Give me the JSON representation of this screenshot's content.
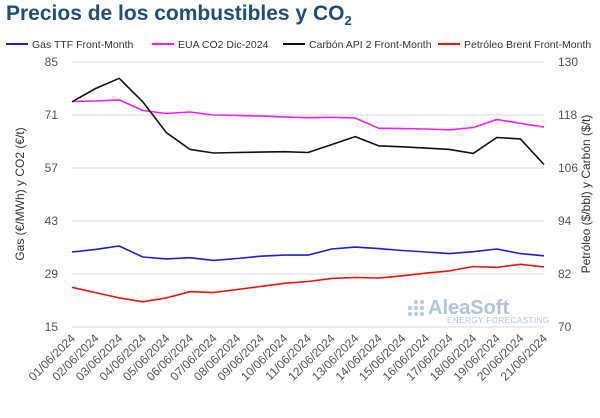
{
  "title": {
    "main": "Precios de los combustibles y CO",
    "sub": "2"
  },
  "watermark": {
    "brand": "AleaSoft",
    "tagline": "ENERGY FORECASTING"
  },
  "chart_data": {
    "type": "line",
    "title": "Precios de los combustibles y CO2",
    "x": [
      "01/06/2024",
      "02/06/2024",
      "03/06/2024",
      "04/06/2024",
      "05/06/2024",
      "06/06/2024",
      "07/06/2024",
      "08/06/2024",
      "09/06/2024",
      "10/06/2024",
      "11/06/2024",
      "12/06/2024",
      "13/06/2024",
      "14/06/2024",
      "15/06/2024",
      "16/06/2024",
      "17/06/2024",
      "18/06/2024",
      "19/06/2024",
      "20/06/2024",
      "21/06/2024"
    ],
    "ylabel_left": "Gas (€/MWh) y CO2 (€/t)",
    "ylabel_right": "Petróleo ($/bbl) y Carbón ($/t)",
    "ylim_left": [
      15,
      85
    ],
    "ylim_right": [
      70,
      130
    ],
    "yticks_left": [
      15,
      29,
      43,
      57,
      71,
      85
    ],
    "yticks_right": [
      70,
      82,
      94,
      106,
      118,
      130
    ],
    "grid": "horizontal",
    "legend": "top",
    "series": [
      {
        "name": "Gas TTF Front-Month",
        "axis": "left",
        "color": "#1f1fd1",
        "values": [
          34.8,
          35.5,
          36.4,
          33.5,
          33.0,
          33.3,
          32.6,
          33.1,
          33.7,
          34.0,
          34.0,
          35.6,
          36.1,
          35.7,
          35.2,
          34.8,
          34.4,
          34.9,
          35.6,
          34.4,
          33.8
        ]
      },
      {
        "name": "EUA CO2 Dic-2024",
        "axis": "left",
        "color": "#ee22ee",
        "values": [
          74.6,
          74.7,
          75.0,
          72.2,
          71.4,
          71.8,
          71.0,
          70.9,
          70.7,
          70.5,
          70.3,
          70.4,
          70.2,
          67.5,
          67.4,
          67.3,
          67.1,
          67.7,
          69.8,
          68.8,
          67.8
        ]
      },
      {
        "name": "Carbón API 2 Front-Month",
        "axis": "right",
        "color": "#111111",
        "values": [
          121.0,
          124.0,
          126.3,
          121.0,
          114.0,
          110.2,
          109.4,
          109.5,
          109.6,
          109.7,
          109.5,
          111.3,
          113.1,
          111.0,
          110.8,
          110.5,
          110.2,
          109.3,
          112.9,
          112.6,
          106.8
        ]
      },
      {
        "name": "Petróleo Brent Front-Month",
        "axis": "right",
        "color": "#ee1111",
        "values": [
          79.0,
          77.8,
          76.6,
          75.7,
          76.6,
          78.0,
          77.8,
          78.5,
          79.2,
          79.9,
          80.3,
          81.0,
          81.2,
          81.1,
          81.6,
          82.2,
          82.7,
          83.7,
          83.5,
          84.2,
          83.6
        ]
      }
    ]
  }
}
